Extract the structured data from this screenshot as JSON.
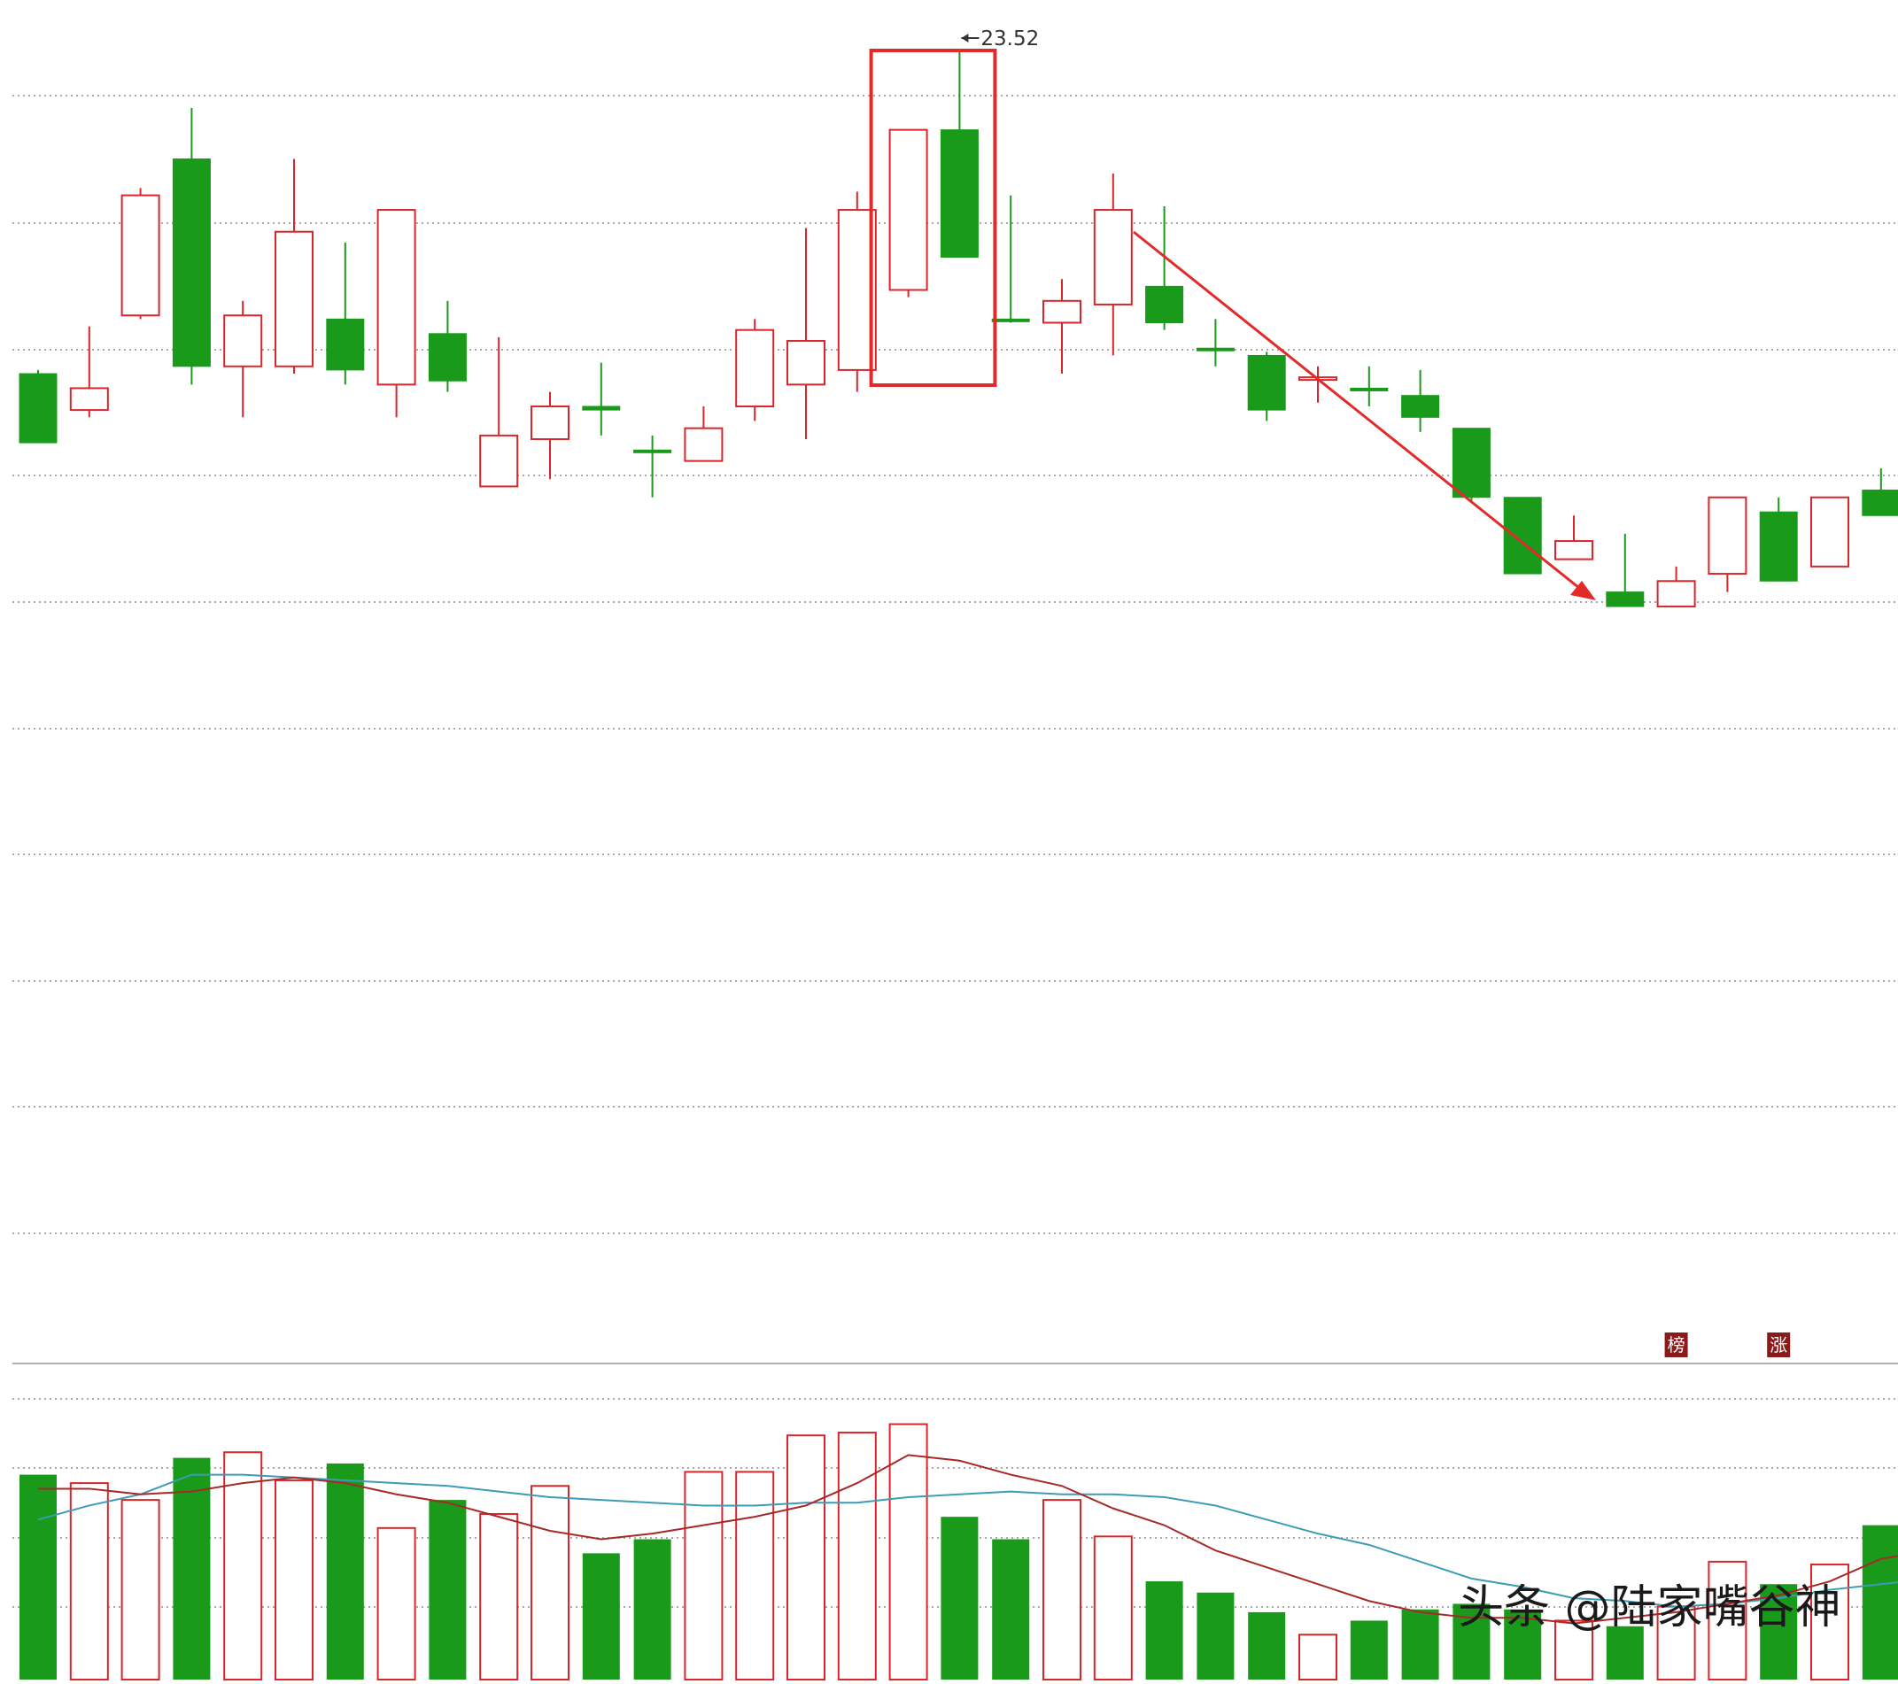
{
  "chart_data": {
    "type": "candlestick",
    "price_range": [
      0,
      100
    ],
    "volume_range": [
      0,
      100
    ],
    "high_annotation": {
      "label": "23.52",
      "candle_index": 18
    },
    "colors": {
      "up": "#d9262b",
      "down": "#1a9a1a",
      "box": "#e32a2a",
      "arrow": "#e32a2a",
      "ma_short": "#a82828",
      "ma_long": "#3e9bb4",
      "grid": "#a8a8a8",
      "badge_bg": "#8b1a1a"
    },
    "candles": [
      {
        "open": 54.5,
        "close": 45.0,
        "high": 55.0,
        "low": 45.0,
        "dir": "down"
      },
      {
        "open": 49.5,
        "close": 52.5,
        "high": 61.0,
        "low": 48.5,
        "dir": "up"
      },
      {
        "open": 62.5,
        "close": 79.0,
        "high": 80.0,
        "low": 62.0,
        "dir": "up"
      },
      {
        "open": 84.0,
        "close": 55.5,
        "high": 91.0,
        "low": 53.0,
        "dir": "down"
      },
      {
        "open": 55.5,
        "close": 62.5,
        "high": 64.5,
        "low": 48.5,
        "dir": "up"
      },
      {
        "open": 55.5,
        "close": 74.0,
        "high": 84.0,
        "low": 54.5,
        "dir": "up"
      },
      {
        "open": 62.0,
        "close": 55.0,
        "high": 72.5,
        "low": 53.0,
        "dir": "down"
      },
      {
        "open": 53.0,
        "close": 77.0,
        "high": 77.0,
        "low": 48.5,
        "dir": "up"
      },
      {
        "open": 60.0,
        "close": 53.5,
        "high": 64.5,
        "low": 52.0,
        "dir": "down"
      },
      {
        "open": 39.0,
        "close": 46.0,
        "high": 59.5,
        "low": 39.0,
        "dir": "up"
      },
      {
        "open": 45.5,
        "close": 50.0,
        "high": 52.0,
        "low": 40.0,
        "dir": "up"
      },
      {
        "open": 50.0,
        "close": 49.5,
        "high": 56.0,
        "low": 46.0,
        "dir": "down"
      },
      {
        "open": 44.0,
        "close": 44.0,
        "high": 46.0,
        "low": 37.5,
        "dir": "down"
      },
      {
        "open": 42.5,
        "close": 47.0,
        "high": 50.0,
        "low": 42.5,
        "dir": "up"
      },
      {
        "open": 50.0,
        "close": 60.5,
        "high": 62.0,
        "low": 48.0,
        "dir": "up"
      },
      {
        "open": 53.0,
        "close": 59.0,
        "high": 74.5,
        "low": 45.5,
        "dir": "up"
      },
      {
        "open": 55.0,
        "close": 77.0,
        "high": 79.5,
        "low": 52.0,
        "dir": "up"
      },
      {
        "open": 66.0,
        "close": 88.0,
        "high": 88.0,
        "low": 65.0,
        "dir": "up"
      },
      {
        "open": 88.0,
        "close": 70.5,
        "high": 99.0,
        "low": 70.5,
        "dir": "down"
      },
      {
        "open": 62.0,
        "close": 62.0,
        "high": 79.0,
        "low": 61.5,
        "dir": "down"
      },
      {
        "open": 61.5,
        "close": 64.5,
        "high": 67.5,
        "low": 54.5,
        "dir": "up"
      },
      {
        "open": 64.0,
        "close": 77.0,
        "high": 82.0,
        "low": 57.0,
        "dir": "up"
      },
      {
        "open": 66.5,
        "close": 61.5,
        "high": 77.5,
        "low": 60.5,
        "dir": "down"
      },
      {
        "open": 58.0,
        "close": 58.0,
        "high": 62.0,
        "low": 55.5,
        "dir": "down"
      },
      {
        "open": 57.0,
        "close": 49.5,
        "high": 57.5,
        "low": 48.0,
        "dir": "down"
      },
      {
        "open": 54.0,
        "close": 54.0,
        "high": 55.5,
        "low": 50.5,
        "dir": "up"
      },
      {
        "open": 52.5,
        "close": 52.5,
        "high": 55.5,
        "low": 50.0,
        "dir": "down"
      },
      {
        "open": 51.5,
        "close": 48.5,
        "high": 55.0,
        "low": 46.5,
        "dir": "down"
      },
      {
        "open": 47.0,
        "close": 37.5,
        "high": 47.0,
        "low": 37.0,
        "dir": "down"
      },
      {
        "open": 37.5,
        "close": 27.0,
        "high": 37.5,
        "low": 27.0,
        "dir": "down"
      },
      {
        "open": 29.0,
        "close": 31.5,
        "high": 35.0,
        "low": 29.0,
        "dir": "up"
      },
      {
        "open": 24.5,
        "close": 22.5,
        "high": 32.5,
        "low": 22.5,
        "dir": "down"
      },
      {
        "open": 22.5,
        "close": 26.0,
        "high": 28.0,
        "low": 22.5,
        "dir": "up"
      },
      {
        "open": 27.0,
        "close": 37.5,
        "high": 37.5,
        "low": 24.5,
        "dir": "up"
      },
      {
        "open": 35.5,
        "close": 26.0,
        "high": 37.5,
        "low": 26.0,
        "dir": "down"
      },
      {
        "open": 28.0,
        "close": 37.5,
        "high": 37.5,
        "low": 28.0,
        "dir": "up"
      },
      {
        "open": 38.5,
        "close": 35.0,
        "high": 41.5,
        "low": 35.0,
        "dir": "down"
      },
      {
        "open": 39.0,
        "close": 40.5,
        "high": 42.5,
        "low": 36.0,
        "dir": "up"
      }
    ],
    "volumes": [
      73,
      70,
      64,
      79,
      81,
      71,
      77,
      54,
      64,
      59,
      69,
      45,
      50,
      74,
      74,
      87,
      88,
      91,
      58,
      50,
      64,
      51,
      35,
      31,
      24,
      16,
      21,
      25,
      27,
      25,
      21,
      19,
      26,
      42,
      34,
      41,
      55,
      42
    ],
    "ma_short": [
      68,
      68,
      66,
      67,
      70,
      72,
      70,
      66,
      63,
      58,
      53,
      50,
      52,
      55,
      58,
      62,
      70,
      80,
      78,
      73,
      69,
      61,
      55,
      46,
      40,
      34,
      28,
      24,
      22,
      22,
      20,
      22,
      24,
      27,
      30,
      35,
      43,
      46
    ],
    "ma_long": [
      57,
      62,
      66,
      73,
      73,
      72,
      71,
      70,
      69,
      67,
      65,
      64,
      63,
      62,
      62,
      63,
      63,
      65,
      66,
      67,
      66,
      66,
      65,
      62,
      57,
      52,
      48,
      42,
      36,
      33,
      29,
      28,
      26,
      27,
      29,
      32,
      34,
      36
    ],
    "badges": [
      {
        "text": "榜",
        "candle_index": 32
      },
      {
        "text": "涨",
        "candle_index": 34
      }
    ]
  },
  "watermark": {
    "text": "头条 @陆家嘴谷神"
  }
}
